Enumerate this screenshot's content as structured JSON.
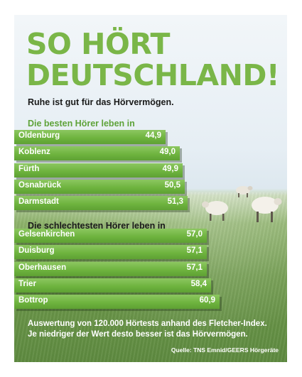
{
  "title_line1": "SO HÖRT",
  "title_line2": "DEUTSCHLAND!",
  "subtitle": "Ruhe ist gut für das Hörvermögen.",
  "footer": {
    "note_line1": "Auswertung von 120.000 Hörtests anhand des Fletcher-Index.",
    "note_line2": "Je niedriger der Wert desto besser ist das Hörvermögen.",
    "source": "Quelle: TNS Emnid/GEERS Hörgeräte"
  },
  "colors": {
    "title": "#7ab648",
    "bar": "#6fb43f",
    "label_best": "#5fa33a"
  },
  "chart_data": [
    {
      "type": "bar",
      "title": "Die besten Hörer leben in",
      "categories": [
        "Oldenburg",
        "Koblenz",
        "Fürth",
        "Osnabrück",
        "Darmstadt"
      ],
      "values": [
        44.9,
        49.0,
        49.9,
        50.5,
        51.3
      ],
      "value_labels": [
        "44,9",
        "49,0",
        "49,9",
        "50,5",
        "51,3"
      ]
    },
    {
      "type": "bar",
      "title": "Die schlechtesten Hörer leben in",
      "categories": [
        "Gelsenkirchen",
        "Duisburg",
        "Oberhausen",
        "Trier",
        "Bottrop"
      ],
      "values": [
        57.0,
        57.1,
        57.1,
        58.4,
        60.9
      ],
      "value_labels": [
        "57,0",
        "57,1",
        "57,1",
        "58,4",
        "60,9"
      ]
    }
  ]
}
